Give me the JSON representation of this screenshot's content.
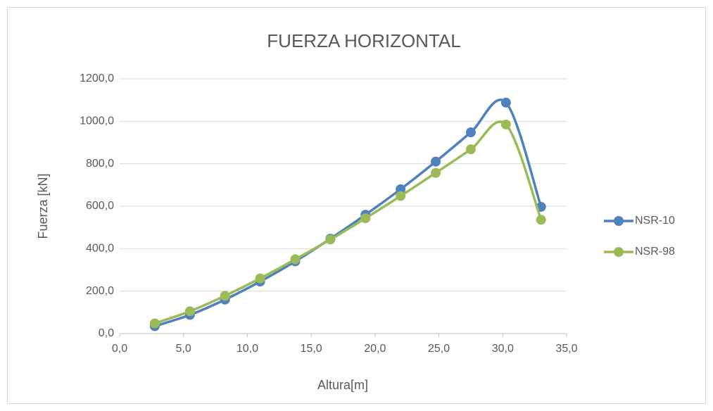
{
  "chart_data": {
    "type": "scatter",
    "smooth": true,
    "title": "FUERZA HORIZONTAL",
    "x_label": "Altura[m]",
    "y_label": "Fuerza [kN]",
    "x": [
      2.75,
      5.5,
      8.25,
      11,
      13.75,
      16.5,
      19.25,
      22,
      24.75,
      27.5,
      30.25,
      33
    ],
    "series": [
      {
        "name": "NSR-10",
        "color": "#4f81bd",
        "values": [
          35,
          88,
          160,
          245,
          340,
          447,
          560,
          680,
          810,
          948,
          1088,
          597
        ]
      },
      {
        "name": "NSR-98",
        "color": "#9bbb59",
        "values": [
          48,
          105,
          178,
          260,
          350,
          443,
          543,
          648,
          757,
          868,
          985,
          536
        ]
      }
    ],
    "xlim": [
      0,
      35
    ],
    "xticks": [
      {
        "value": 0,
        "label": "0,0"
      },
      {
        "value": 5,
        "label": "5,0"
      },
      {
        "value": 10,
        "label": "10,0"
      },
      {
        "value": 15,
        "label": "15,0"
      },
      {
        "value": 20,
        "label": "20,0"
      },
      {
        "value": 25,
        "label": "25,0"
      },
      {
        "value": 30,
        "label": "30,0"
      },
      {
        "value": 35,
        "label": "35,0"
      }
    ],
    "ylim": [
      0,
      1200
    ],
    "yticks": [
      {
        "value": 0,
        "label": "0,0"
      },
      {
        "value": 200,
        "label": "200,0"
      },
      {
        "value": 400,
        "label": "400,0"
      },
      {
        "value": 600,
        "label": "600,0"
      },
      {
        "value": 800,
        "label": "800,0"
      },
      {
        "value": 1000,
        "label": "1000,0"
      },
      {
        "value": 1200,
        "label": "1200,0"
      }
    ],
    "grid": true,
    "legend": "right"
  }
}
